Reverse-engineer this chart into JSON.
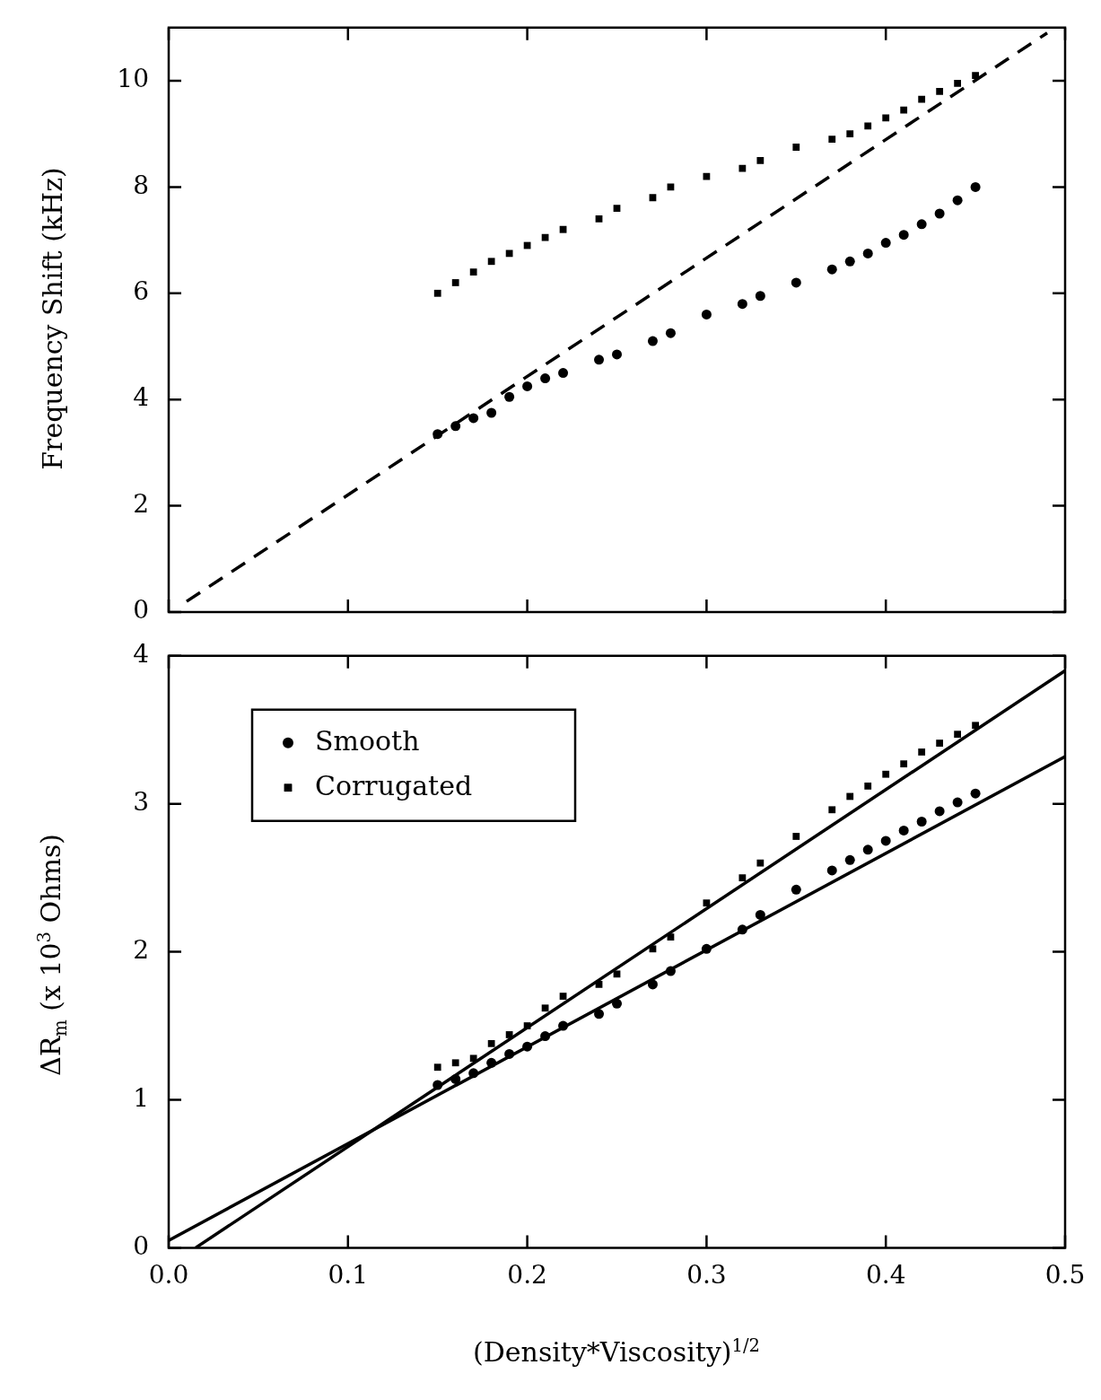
{
  "chart_data": [
    {
      "type": "scatter",
      "ylabel": "Frequency Shift (kHz)",
      "xlim": [
        0,
        0.5
      ],
      "xticks": [
        0.0,
        0.1,
        0.2,
        0.3,
        0.4,
        0.5
      ],
      "ylim": [
        0,
        11
      ],
      "yticks": [
        0,
        2,
        4,
        6,
        8,
        10
      ],
      "tick_labels": "y",
      "series": [
        {
          "type": "scatter",
          "marker": "circle",
          "color": "#000000",
          "x": [
            0.15,
            0.16,
            0.17,
            0.18,
            0.19,
            0.2,
            0.21,
            0.22,
            0.24,
            0.25,
            0.27,
            0.28,
            0.3,
            0.32,
            0.33,
            0.35,
            0.37,
            0.38,
            0.39,
            0.4,
            0.41,
            0.42,
            0.43,
            0.44,
            0.45
          ],
          "values": [
            3.35,
            3.5,
            3.65,
            3.75,
            4.05,
            4.25,
            4.4,
            4.5,
            4.75,
            4.85,
            5.1,
            5.25,
            5.6,
            5.8,
            5.95,
            6.2,
            6.45,
            6.6,
            6.75,
            6.95,
            7.1,
            7.3,
            7.5,
            7.75,
            8.0
          ]
        },
        {
          "type": "scatter",
          "marker": "square",
          "color": "#000000",
          "x": [
            0.15,
            0.16,
            0.17,
            0.18,
            0.19,
            0.2,
            0.21,
            0.22,
            0.24,
            0.25,
            0.27,
            0.28,
            0.3,
            0.32,
            0.33,
            0.35,
            0.37,
            0.38,
            0.39,
            0.4,
            0.41,
            0.42,
            0.43,
            0.44,
            0.45
          ],
          "values": [
            6.0,
            6.2,
            6.4,
            6.6,
            6.75,
            6.9,
            7.05,
            7.2,
            7.4,
            7.6,
            7.8,
            8.0,
            8.2,
            8.35,
            8.5,
            8.75,
            8.9,
            9.0,
            9.15,
            9.3,
            9.45,
            9.65,
            9.8,
            9.95,
            10.1
          ]
        },
        {
          "type": "line",
          "line_style": "dashed",
          "color": "#000000",
          "x": [
            0.01,
            0.49
          ],
          "values": [
            0.2,
            10.9
          ]
        }
      ]
    },
    {
      "type": "scatter",
      "xlabel": "(Density*Viscosity)$^{1/2}$",
      "ylabel": "ΔR$_{m}$   (x 10$^{3}$ Ohms)",
      "xlim": [
        0,
        0.5
      ],
      "xticks": [
        {
          "value": 0,
          "label": "0.0"
        },
        0.1,
        0.2,
        0.3,
        0.4,
        0.5
      ],
      "ylim": [
        0,
        4
      ],
      "yticks": [
        0,
        1,
        2,
        3,
        4
      ],
      "legend": "top left",
      "series": [
        {
          "name": "Smooth",
          "type": "scatter",
          "marker": "circle",
          "color": "#000000",
          "x": [
            0.15,
            0.16,
            0.17,
            0.18,
            0.19,
            0.2,
            0.21,
            0.22,
            0.24,
            0.25,
            0.27,
            0.28,
            0.3,
            0.32,
            0.33,
            0.35,
            0.37,
            0.38,
            0.39,
            0.4,
            0.41,
            0.42,
            0.43,
            0.44,
            0.45
          ],
          "values": [
            1.1,
            1.14,
            1.18,
            1.25,
            1.31,
            1.36,
            1.43,
            1.5,
            1.58,
            1.65,
            1.78,
            1.87,
            2.02,
            2.15,
            2.25,
            2.42,
            2.55,
            2.62,
            2.69,
            2.75,
            2.82,
            2.88,
            2.95,
            3.01,
            3.07
          ]
        },
        {
          "name": "Corrugated",
          "type": "scatter",
          "marker": "square",
          "color": "#000000",
          "x": [
            0.15,
            0.16,
            0.17,
            0.18,
            0.19,
            0.2,
            0.21,
            0.22,
            0.24,
            0.25,
            0.27,
            0.28,
            0.3,
            0.32,
            0.33,
            0.35,
            0.37,
            0.38,
            0.39,
            0.4,
            0.41,
            0.42,
            0.43,
            0.44,
            0.45
          ],
          "values": [
            1.22,
            1.25,
            1.28,
            1.38,
            1.44,
            1.5,
            1.62,
            1.7,
            1.78,
            1.85,
            2.02,
            2.1,
            2.33,
            2.5,
            2.6,
            2.78,
            2.96,
            3.05,
            3.12,
            3.2,
            3.27,
            3.35,
            3.41,
            3.47,
            3.53
          ]
        },
        {
          "type": "line",
          "color": "#000000",
          "x": [
            0.0,
            0.5
          ],
          "values": [
            0.05,
            3.32
          ]
        },
        {
          "type": "line",
          "color": "#000000",
          "x": [
            0.015,
            0.5
          ],
          "values": [
            0.0,
            3.9
          ]
        }
      ]
    }
  ]
}
